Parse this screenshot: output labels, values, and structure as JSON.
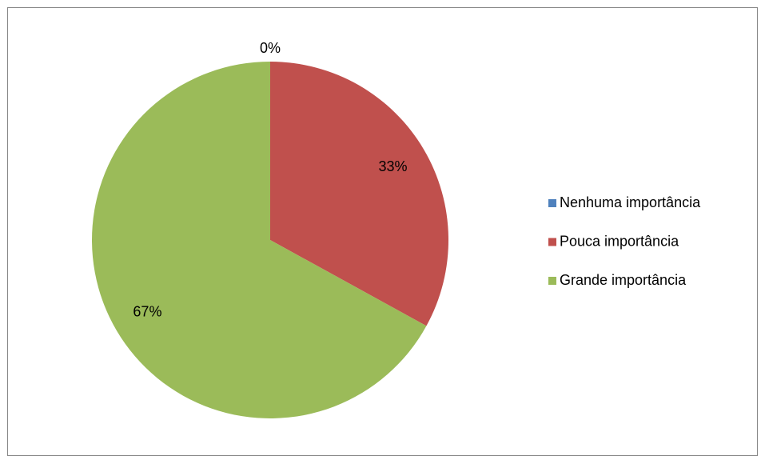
{
  "chart_data": {
    "type": "pie",
    "categories": [
      "Nenhuma importância",
      "Pouca importância",
      "Grande importância"
    ],
    "values": [
      0,
      33,
      67
    ],
    "value_labels": [
      "0%",
      "33%",
      "67%"
    ],
    "colors": [
      "#4f81bd",
      "#c0504d",
      "#9bbb59"
    ],
    "legend": "right"
  }
}
